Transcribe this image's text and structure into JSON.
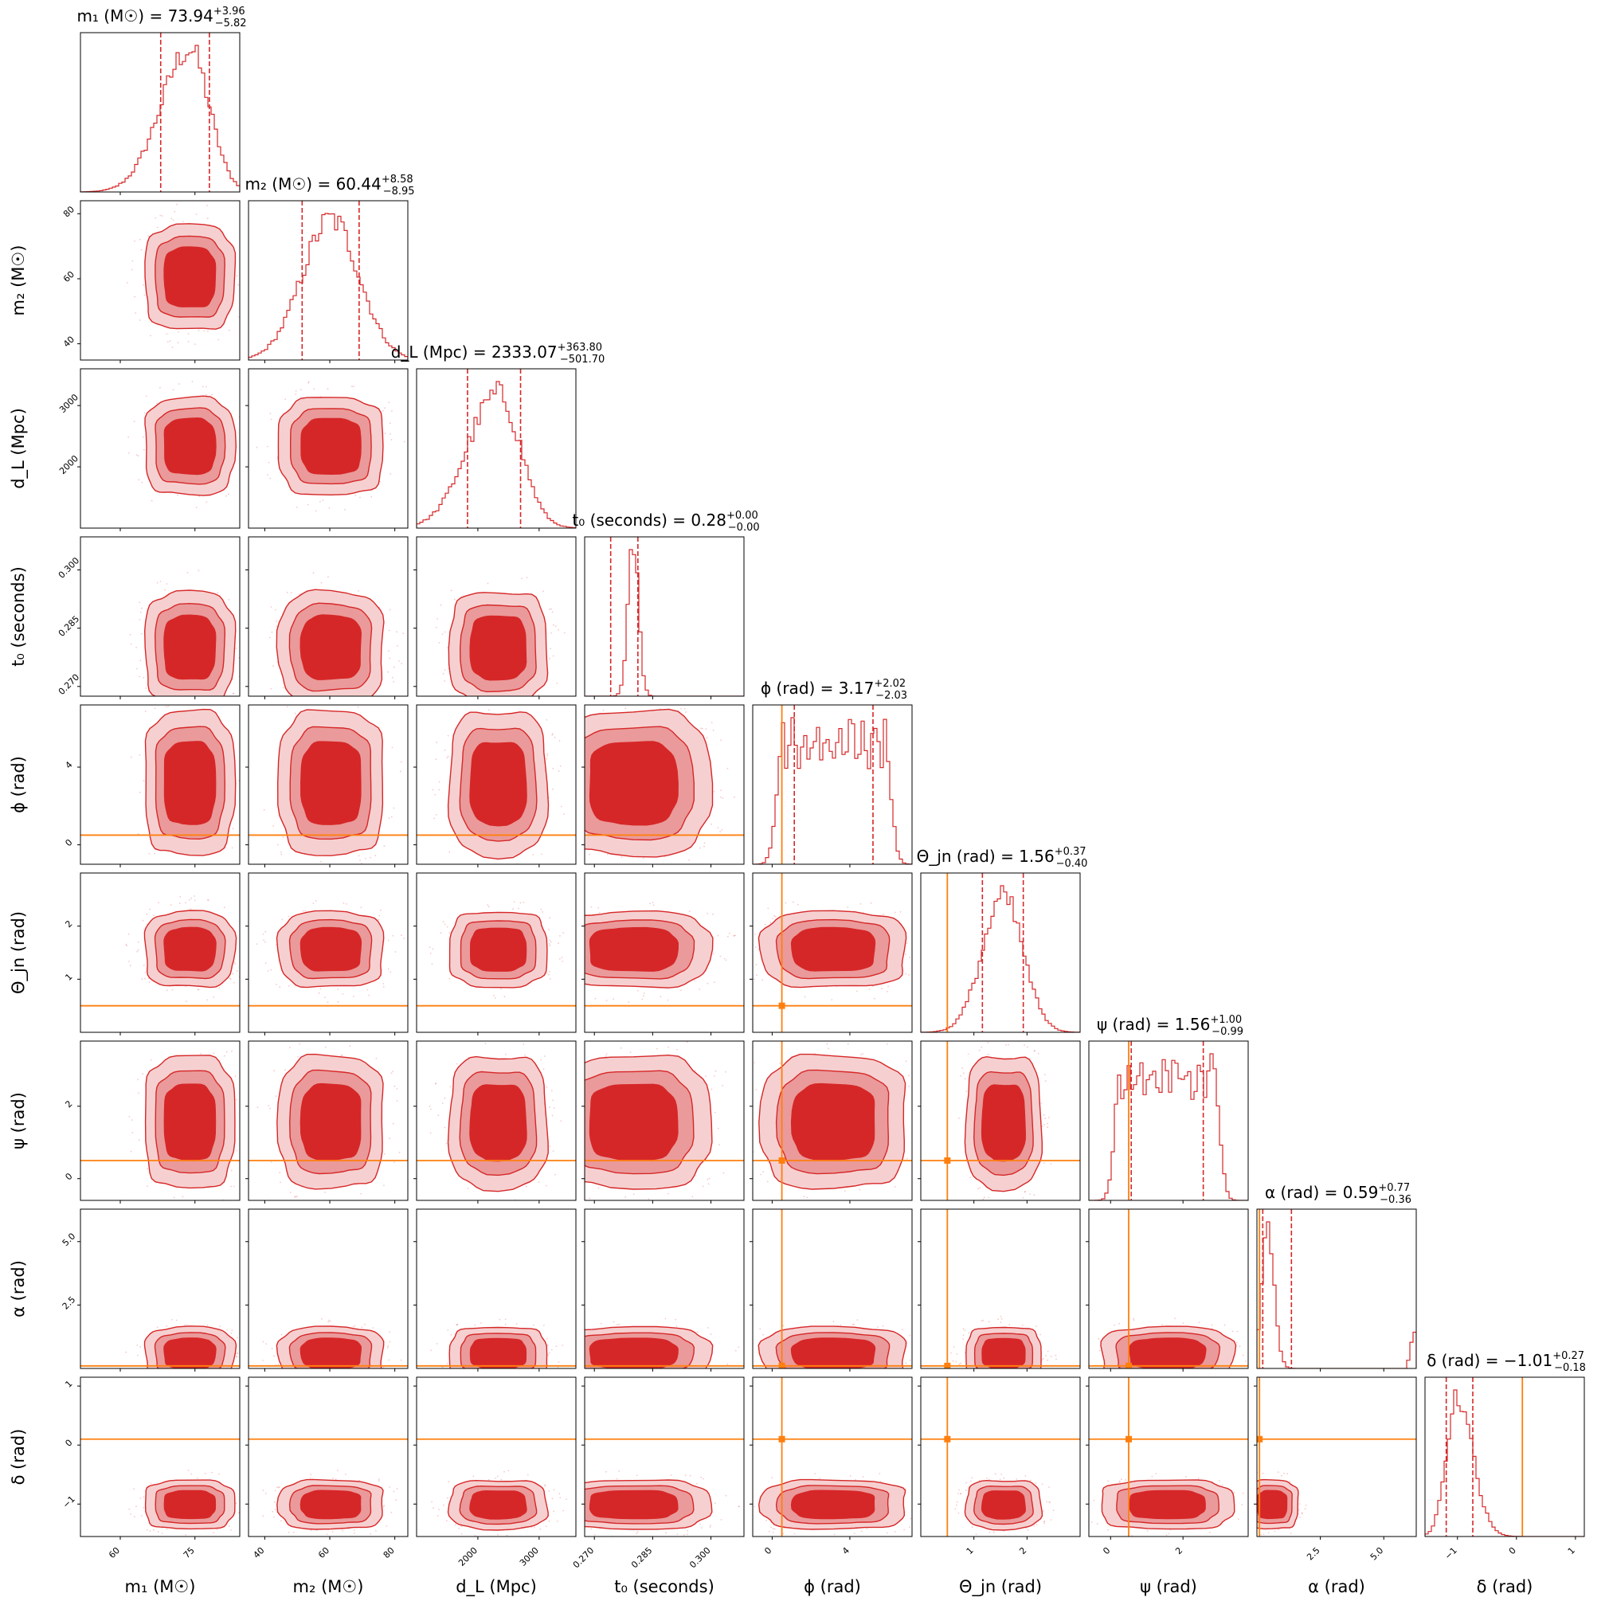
{
  "chart_data": {
    "type": "corner",
    "parameters": [
      {
        "id": "m1",
        "axis_label": "m₁ (M☉)",
        "median": 73.94,
        "plus": "3.96",
        "minus": "5.82",
        "range": [
          52,
          84
        ],
        "ticks": [
          60,
          75
        ],
        "tick_labels": [
          "60",
          "75"
        ],
        "quantiles": [
          68.12,
          77.9
        ],
        "truth": null
      },
      {
        "id": "m2",
        "axis_label": "m₂ (M☉)",
        "median": 60.44,
        "plus": "8.58",
        "minus": "8.95",
        "range": [
          35,
          84
        ],
        "ticks": [
          40,
          60,
          80
        ],
        "tick_labels": [
          "40",
          "60",
          "80"
        ],
        "quantiles": [
          51.49,
          69.02
        ],
        "truth": null
      },
      {
        "id": "dL",
        "axis_label": "d_L (Mpc)",
        "median": 2333.07,
        "plus": "363.80",
        "minus": "501.70",
        "range": [
          1000,
          3600
        ],
        "ticks": [
          2000,
          3000
        ],
        "tick_labels": [
          "2000",
          "3000"
        ],
        "quantiles": [
          1831.37,
          2696.87
        ],
        "truth": null
      },
      {
        "id": "t0",
        "axis_label": "t₀ (seconds)",
        "median": 0.28,
        "plus": "0.00",
        "minus": "0.00",
        "range": [
          0.2675,
          0.3085
        ],
        "ticks": [
          0.27,
          0.285,
          0.3
        ],
        "tick_labels": [
          "0.270",
          "0.285",
          "0.300"
        ],
        "quantiles": [
          0.2742,
          0.2812
        ],
        "truth": null
      },
      {
        "id": "phi",
        "axis_label": "ϕ (rad)",
        "median": 3.17,
        "plus": "2.02",
        "minus": "2.03",
        "range": [
          -1.0,
          7.2
        ],
        "ticks": [
          0,
          4
        ],
        "tick_labels": [
          "0",
          "4"
        ],
        "quantiles": [
          1.14,
          5.19
        ],
        "truth": 0.5
      },
      {
        "id": "theta_jn",
        "axis_label": "Θ_jn (rad)",
        "median": 1.56,
        "plus": "0.37",
        "minus": "0.40",
        "range": [
          0.0,
          3.0
        ],
        "ticks": [
          1,
          2
        ],
        "tick_labels": [
          "1",
          "2"
        ],
        "quantiles": [
          1.16,
          1.93
        ],
        "truth": 0.5
      },
      {
        "id": "psi",
        "axis_label": "ψ (rad)",
        "median": 1.56,
        "plus": "1.00",
        "minus": "0.99",
        "range": [
          -0.6,
          3.8
        ],
        "ticks": [
          0,
          2
        ],
        "tick_labels": [
          "0",
          "2"
        ],
        "quantiles": [
          0.57,
          2.56
        ],
        "truth": 0.5
      },
      {
        "id": "alpha",
        "axis_label": "α (rad)",
        "median": 0.59,
        "plus": "0.77",
        "minus": "0.36",
        "range": [
          0.0,
          6.28
        ],
        "ticks": [
          2.5,
          5.0
        ],
        "tick_labels": [
          "2.5",
          "5.0"
        ],
        "quantiles": [
          0.23,
          1.36
        ],
        "truth": 0.1
      },
      {
        "id": "delta",
        "axis_label": "δ (rad)",
        "median": -1.01,
        "plus": "0.27",
        "minus": "0.18",
        "range": [
          -1.55,
          1.15
        ],
        "ticks": [
          -1,
          0,
          1
        ],
        "tick_labels": [
          "−1",
          "0",
          "1"
        ],
        "quantiles": [
          -1.19,
          -0.74
        ],
        "truth": 0.1
      }
    ],
    "diagonal_titles": [
      {
        "param": "m1",
        "name": "m₁ (M☉)",
        "value": "73.94",
        "plus": "+3.96",
        "minus": "−5.82"
      },
      {
        "param": "m2",
        "name": "m₂ (M☉)",
        "value": "60.44",
        "plus": "+8.58",
        "minus": "−8.95"
      },
      {
        "param": "dL",
        "name": "d_L (Mpc)",
        "value": "2333.07",
        "plus": "+363.80",
        "minus": "−501.70"
      },
      {
        "param": "t0",
        "name": "t₀ (seconds)",
        "value": "0.28",
        "plus": "+0.00",
        "minus": "−0.00"
      },
      {
        "param": "phi",
        "name": "ϕ (rad)",
        "value": "3.17",
        "plus": "+2.02",
        "minus": "−2.03"
      },
      {
        "param": "theta_jn",
        "name": "Θ_jn (rad)",
        "value": "1.56",
        "plus": "+0.37",
        "minus": "−0.40"
      },
      {
        "param": "psi",
        "name": "ψ (rad)",
        "value": "1.56",
        "plus": "+1.00",
        "minus": "−0.99"
      },
      {
        "param": "alpha",
        "name": "α (rad)",
        "value": "0.59",
        "plus": "+0.77",
        "minus": "−0.36"
      },
      {
        "param": "delta",
        "name": "δ (rad)",
        "value": "−1.01",
        "plus": "+0.27",
        "minus": "−0.18"
      }
    ],
    "row_labels": [
      "",
      "m₂ (M☉)",
      "d_L (Mpc)",
      "t₀ (seconds)",
      "ϕ (rad)",
      "Θ_jn (rad)",
      "ψ (rad)",
      "α (rad)",
      "δ (rad)"
    ],
    "column_labels": [
      "m₁ (M☉)",
      "m₂ (M☉)",
      "d_L (Mpc)",
      "t₀ (seconds)",
      "ϕ (rad)",
      "Θ_jn (rad)",
      "ψ (rad)",
      "α (rad)",
      "δ (rad)"
    ],
    "colors": {
      "posterior": "#d62728",
      "fill_inner": "#d62728",
      "fill_outer": "#ea9a9a",
      "fill_outermost": "#f6d0d0",
      "truth": "#ff7f0e"
    },
    "histogram_style": "step",
    "grid": false,
    "legend": "none"
  }
}
